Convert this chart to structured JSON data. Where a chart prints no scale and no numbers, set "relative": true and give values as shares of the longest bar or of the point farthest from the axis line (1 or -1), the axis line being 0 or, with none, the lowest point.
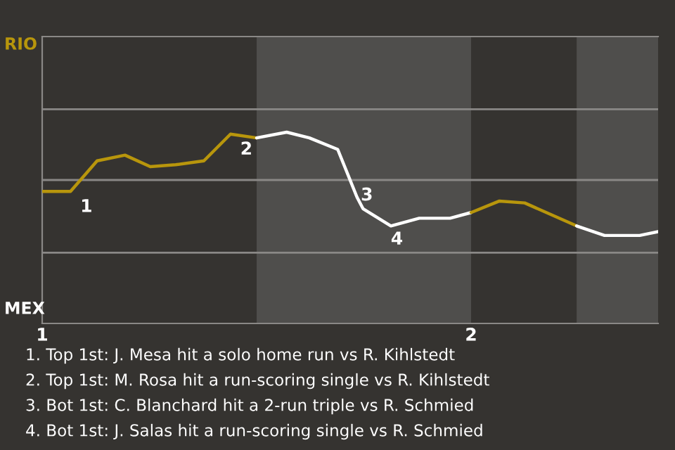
{
  "chart_data": {
    "type": "line",
    "relative": true,
    "xlim": [
      1,
      2.436
    ],
    "xticks": [
      1,
      2
    ],
    "marker": "none",
    "line_style": "solid",
    "ref_lines": [
      {
        "axis": "y",
        "value": 0.37,
        "label": null,
        "color": "#8a8886"
      },
      {
        "axis": "y",
        "value": 0.75,
        "label": null,
        "color": "#8a8886"
      },
      {
        "axis": "y",
        "value": 1.12,
        "label": null,
        "color": "#8a8886"
      }
    ],
    "bands": [
      {
        "axis": "x",
        "from": 1.5,
        "to": 2.0,
        "label": null,
        "color": "#4f4e4c"
      },
      {
        "axis": "x",
        "from": 2.246,
        "to": 2.436,
        "label": null,
        "color": "#4f4e4c"
      }
    ],
    "series": [
      {
        "color": "#b8960c",
        "x": [
          1.0,
          1.066,
          1.128,
          1.193,
          1.252,
          1.311,
          1.377,
          1.439,
          1.5
        ],
        "values": [
          0.69,
          0.69,
          0.85,
          0.88,
          0.82,
          0.83,
          0.85,
          0.99,
          0.97
        ]
      },
      {
        "color": "#ffffff",
        "x": [
          1.5,
          1.57,
          1.623,
          1.689,
          1.734,
          1.748,
          1.813,
          1.879,
          1.951,
          2.0
        ],
        "values": [
          0.97,
          1.0,
          0.97,
          0.91,
          0.66,
          0.6,
          0.51,
          0.55,
          0.55,
          0.58
        ]
      },
      {
        "color": "#b8960c",
        "x": [
          2.0,
          2.066,
          2.125,
          2.246
        ],
        "values": [
          0.58,
          0.64,
          0.63,
          0.51
        ]
      },
      {
        "color": "#ffffff",
        "x": [
          2.246,
          2.311,
          2.393,
          2.436
        ],
        "values": [
          0.51,
          0.46,
          0.46,
          0.48
        ]
      }
    ],
    "annotations": [
      "RIO",
      "MEX",
      {
        "text": "1",
        "x": 1.066,
        "y": 0.69
      },
      {
        "text": "2",
        "x": 1.439,
        "y": 0.99
      },
      {
        "text": "3",
        "x": 1.72,
        "y": 0.75
      },
      {
        "text": "4",
        "x": 1.79,
        "y": 0.52
      },
      "1. Top 1st: J. Mesa hit a solo home run vs R. Kihlstedt",
      "2. Top 1st: M. Rosa hit a run-scoring single vs R. Kihlstedt",
      "3. Bot 1st: C. Blanchard hit a 2-run triple vs R. Schmied",
      "4. Bot 1st: J. Salas hit a run-scoring single vs R. Schmied"
    ]
  }
}
